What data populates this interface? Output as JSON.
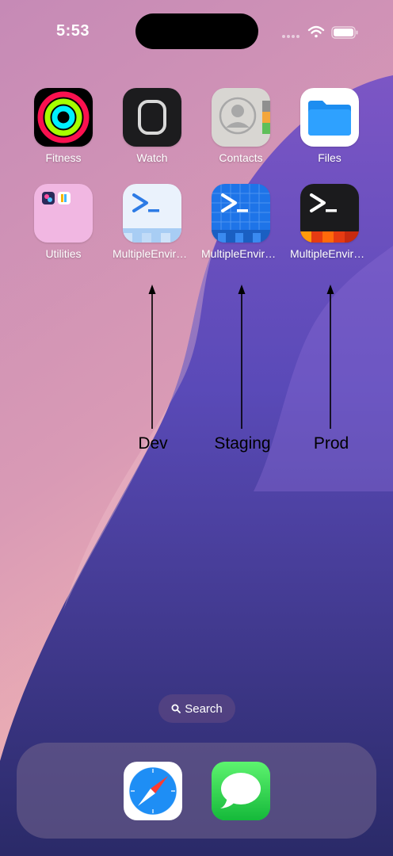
{
  "status_bar": {
    "time": "5:53",
    "icons": [
      "signal-icon",
      "wifi-icon",
      "battery-icon"
    ]
  },
  "home_screen": {
    "row1": [
      {
        "label": "Fitness",
        "icon": "fitness-rings-icon"
      },
      {
        "label": "Watch",
        "icon": "apple-watch-icon"
      },
      {
        "label": "Contacts",
        "icon": "contact-person-icon"
      },
      {
        "label": "Files",
        "icon": "folder-icon"
      }
    ],
    "row2": [
      {
        "label": "Utilities",
        "icon": "utilities-folder-icon"
      },
      {
        "label": "MultipleEnviron...",
        "icon": "terminal-icon",
        "variant": "Dev"
      },
      {
        "label": "MultipleEnviron...",
        "icon": "terminal-icon",
        "variant": "Staging"
      },
      {
        "label": "MultipleEnviron...",
        "icon": "terminal-icon",
        "variant": "Prod"
      }
    ]
  },
  "annotations": {
    "dev": "Dev",
    "staging": "Staging",
    "prod": "Prod"
  },
  "search": {
    "label": "Search",
    "icon": "magnifier-icon"
  },
  "dock": {
    "apps": [
      {
        "name": "Safari",
        "icon": "safari-compass-icon"
      },
      {
        "name": "Messages",
        "icon": "messages-bubble-icon"
      }
    ]
  },
  "colors": {
    "wallpaper_pink": "#c88ab7",
    "wallpaper_purple": "#6a4fc0",
    "wallpaper_navy": "#2c2a6b",
    "dev_tile": "#e9f1fb",
    "staging_tile": "#1e74e8",
    "prod_tile": "#1b1b1d"
  }
}
